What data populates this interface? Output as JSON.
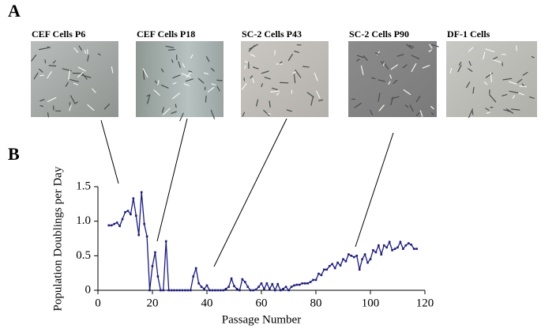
{
  "panels": {
    "a": "A",
    "b": "B"
  },
  "images": [
    {
      "caption": "CEF Cells P6"
    },
    {
      "caption": "CEF Cells P18"
    },
    {
      "caption": "SC-2 Cells P43"
    },
    {
      "caption": "SC-2 Cells P90"
    },
    {
      "caption": "DF-1 Cells"
    }
  ],
  "chart_data": {
    "type": "line",
    "x_label": "Passage Number",
    "y_label": "Population Doublings per Day",
    "x": [
      4,
      5,
      6,
      7,
      8,
      9,
      10,
      11,
      12,
      13,
      14,
      15,
      16,
      17,
      18,
      19,
      20,
      21,
      22,
      23,
      24,
      25,
      26,
      27,
      28,
      29,
      30,
      31,
      32,
      33,
      34,
      35,
      36,
      37,
      38,
      39,
      40,
      41,
      42,
      43,
      44,
      45,
      46,
      47,
      48,
      49,
      50,
      51,
      52,
      53,
      54,
      55,
      56,
      57,
      58,
      59,
      60,
      61,
      62,
      63,
      64,
      65,
      66,
      67,
      68,
      69,
      70,
      71,
      72,
      73,
      74,
      75,
      76,
      77,
      78,
      79,
      80,
      81,
      82,
      83,
      84,
      85,
      86,
      87,
      88,
      89,
      90,
      91,
      92,
      93,
      94,
      95,
      96,
      97,
      98,
      99,
      100,
      101,
      102,
      103,
      104,
      105,
      106,
      107,
      108,
      109,
      110,
      111,
      112,
      113,
      114,
      115,
      116,
      117
    ],
    "series": [
      {
        "color": "#1a1a8c",
        "values": [
          0.94,
          0.94,
          0.96,
          0.98,
          0.93,
          1.03,
          1.13,
          1.15,
          1.1,
          1.33,
          1.08,
          0.8,
          1.42,
          0.96,
          0.78,
          0,
          0.35,
          0.55,
          0.2,
          0,
          0,
          0.71,
          0,
          0,
          0,
          0,
          0,
          0,
          0,
          0,
          0,
          0.2,
          0.32,
          0.1,
          0.05,
          0.02,
          0.07,
          0,
          0,
          0,
          0,
          0,
          0,
          0.02,
          0.05,
          0.17,
          0.06,
          0.02,
          0,
          0.16,
          0.12,
          0.05,
          0,
          0,
          0.01,
          0.05,
          0.1,
          0.02,
          0.1,
          0.02,
          0.09,
          0,
          0.09,
          0,
          0.02,
          0.05,
          0,
          0.05,
          0.07,
          0.08,
          0.08,
          0.1,
          0.1,
          0.1,
          0.12,
          0.15,
          0.15,
          0.24,
          0.22,
          0.3,
          0.3,
          0.35,
          0.38,
          0.32,
          0.4,
          0.36,
          0.45,
          0.42,
          0.52,
          0.5,
          0.48,
          0.5,
          0.3,
          0.45,
          0.52,
          0.4,
          0.45,
          0.58,
          0.55,
          0.65,
          0.52,
          0.65,
          0.62,
          0.7,
          0.58,
          0.6,
          0.62,
          0.7,
          0.6,
          0.65,
          0.68,
          0.66,
          0.6,
          0.6
        ]
      }
    ],
    "xlim": [
      0,
      120
    ],
    "xticks": [
      0,
      20,
      40,
      60,
      80,
      100,
      120
    ],
    "ylim": [
      0,
      1.5
    ],
    "yticks": [
      0,
      0.5,
      {
        "value": 1,
        "label": "1.0"
      },
      1.5
    ]
  }
}
